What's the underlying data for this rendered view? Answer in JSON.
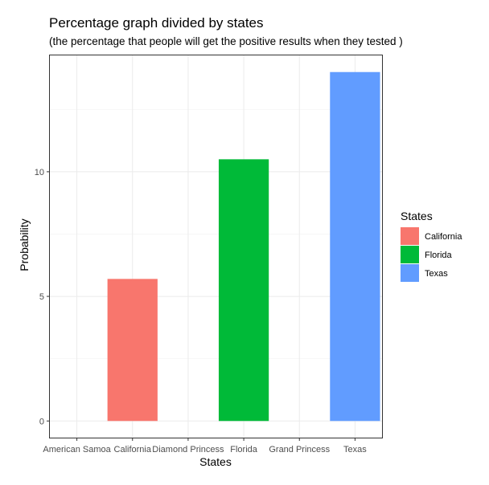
{
  "chart_data": {
    "type": "bar",
    "title": "Percentage graph divided by states",
    "subtitle": "(the percentage that people will get the positive results when they tested )",
    "xlabel": "States",
    "ylabel": "Probability",
    "categories": [
      "American Samoa",
      "California",
      "Diamond Princess",
      "Florida",
      "Grand Princess",
      "Texas"
    ],
    "values": [
      0,
      5.7,
      0,
      10.5,
      0,
      14.0
    ],
    "ylim": [
      -0.7,
      14.7
    ],
    "yticks": [
      0,
      5,
      10
    ],
    "grid": true,
    "legend": {
      "title": "States",
      "position": "right",
      "items": [
        {
          "label": "California",
          "color": "#F8766D"
        },
        {
          "label": "Florida",
          "color": "#00BA38"
        },
        {
          "label": "Texas",
          "color": "#619CFF"
        }
      ]
    },
    "bar_colors": {
      "California": "#F8766D",
      "Florida": "#00BA38",
      "Texas": "#619CFF"
    }
  }
}
